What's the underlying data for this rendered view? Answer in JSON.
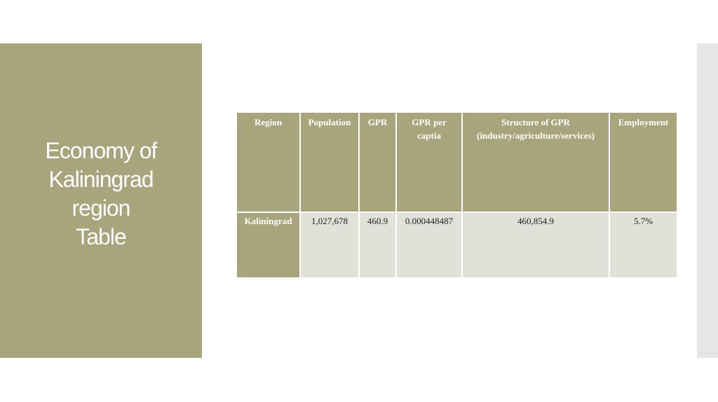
{
  "slide": {
    "title_lines": [
      "Economy of",
      "Kaliningrad",
      "region",
      "Table"
    ]
  },
  "table": {
    "headers": [
      "Region",
      "Population",
      "GPR",
      "GPR per captia",
      "Structure of GPR (industry/agriculture/services)",
      "Employment"
    ],
    "rows": [
      [
        "Kaliningrad",
        "1,027,678",
        "460.9",
        "0.000448487",
        "460,854.9",
        "5.7%"
      ]
    ]
  },
  "colors": {
    "accent": "#a8a47c",
    "cell": "#e1e0d9"
  }
}
